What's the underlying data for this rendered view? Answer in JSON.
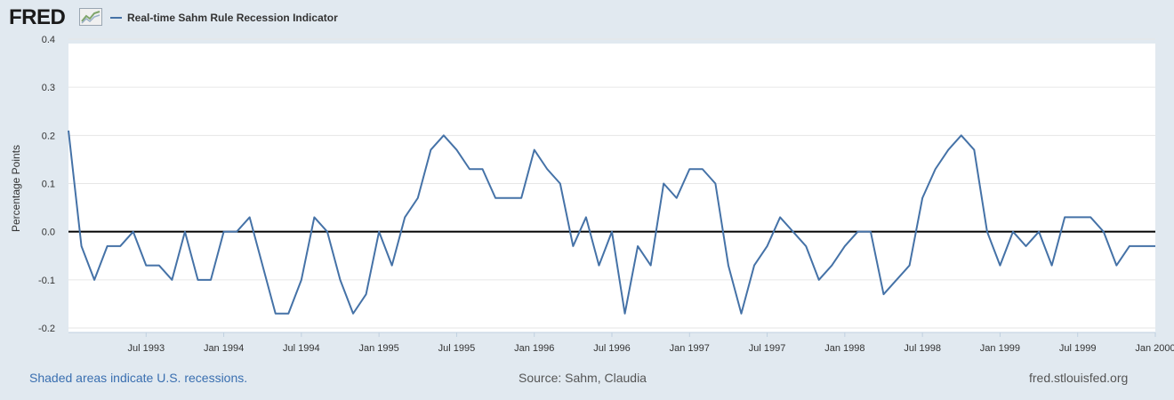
{
  "header": {
    "logo_text": "FRED",
    "logo_icon": "line-chart-icon",
    "legend_label": "Real-time Sahm Rule Recession Indicator",
    "series_color": "#4572a7"
  },
  "footer": {
    "recessions_note": "Shaded areas indicate U.S. recessions.",
    "source": "Source: Sahm, Claudia",
    "site": "fred.stlouisfed.org"
  },
  "chart_data": {
    "type": "line",
    "title": "",
    "xlabel": "",
    "ylabel": "Percentage Points",
    "ylim": [
      -0.2,
      0.4
    ],
    "yticks": [
      {
        "value": 0.4,
        "label": "0.4"
      },
      {
        "value": 0.3,
        "label": "0.3"
      },
      {
        "value": 0.2,
        "label": "0.2"
      },
      {
        "value": 0.1,
        "label": "0.1"
      },
      {
        "value": 0.0,
        "label": "0.0"
      },
      {
        "value": -0.1,
        "label": "-0.1"
      },
      {
        "value": -0.2,
        "label": "-0.2"
      }
    ],
    "xlim": [
      "1993-01",
      "2000-01"
    ],
    "xticks": [
      {
        "date": "1993-07",
        "label": "Jul 1993"
      },
      {
        "date": "1994-01",
        "label": "Jan 1994"
      },
      {
        "date": "1994-07",
        "label": "Jul 1994"
      },
      {
        "date": "1995-01",
        "label": "Jan 1995"
      },
      {
        "date": "1995-07",
        "label": "Jul 1995"
      },
      {
        "date": "1996-01",
        "label": "Jan 1996"
      },
      {
        "date": "1996-07",
        "label": "Jul 1996"
      },
      {
        "date": "1997-01",
        "label": "Jan 1997"
      },
      {
        "date": "1997-07",
        "label": "Jul 1997"
      },
      {
        "date": "1998-01",
        "label": "Jan 1998"
      },
      {
        "date": "1998-07",
        "label": "Jul 1998"
      },
      {
        "date": "1999-01",
        "label": "Jan 1999"
      },
      {
        "date": "1999-07",
        "label": "Jul 1999"
      },
      {
        "date": "2000-01",
        "label": "Jan 2000"
      }
    ],
    "zero_line": true,
    "grid": "horizontal",
    "series": [
      {
        "color": "#4572a7",
        "x": [
          "1993-01",
          "1993-02",
          "1993-03",
          "1993-04",
          "1993-05",
          "1993-06",
          "1993-07",
          "1993-08",
          "1993-09",
          "1993-10",
          "1993-11",
          "1993-12",
          "1994-01",
          "1994-02",
          "1994-03",
          "1994-04",
          "1994-05",
          "1994-06",
          "1994-07",
          "1994-08",
          "1994-09",
          "1994-10",
          "1994-11",
          "1994-12",
          "1995-01",
          "1995-02",
          "1995-03",
          "1995-04",
          "1995-05",
          "1995-06",
          "1995-07",
          "1995-08",
          "1995-09",
          "1995-10",
          "1995-11",
          "1995-12",
          "1996-01",
          "1996-02",
          "1996-03",
          "1996-04",
          "1996-05",
          "1996-06",
          "1996-07",
          "1996-08",
          "1996-09",
          "1996-10",
          "1996-11",
          "1996-12",
          "1997-01",
          "1997-02",
          "1997-03",
          "1997-04",
          "1997-05",
          "1997-06",
          "1997-07",
          "1997-08",
          "1997-09",
          "1997-10",
          "1997-11",
          "1997-12",
          "1998-01",
          "1998-02",
          "1998-03",
          "1998-04",
          "1998-05",
          "1998-06",
          "1998-07",
          "1998-08",
          "1998-09",
          "1998-10",
          "1998-11",
          "1998-12",
          "1999-01",
          "1999-02",
          "1999-03",
          "1999-04",
          "1999-05",
          "1999-06",
          "1999-07",
          "1999-08",
          "1999-09",
          "1999-10",
          "1999-11",
          "1999-12",
          "2000-01"
        ],
        "values": [
          0.21,
          -0.03,
          -0.1,
          -0.03,
          -0.03,
          0.0,
          -0.07,
          -0.07,
          -0.1,
          0.0,
          -0.1,
          -0.1,
          0.0,
          0.0,
          0.03,
          -0.07,
          -0.17,
          -0.17,
          -0.1,
          0.03,
          0.0,
          -0.1,
          -0.17,
          -0.13,
          0.0,
          -0.07,
          0.03,
          0.07,
          0.17,
          0.2,
          0.17,
          0.13,
          0.13,
          0.07,
          0.07,
          0.07,
          0.17,
          0.13,
          0.1,
          -0.03,
          0.03,
          -0.07,
          0.0,
          -0.17,
          -0.03,
          -0.07,
          0.1,
          0.07,
          0.13,
          0.13,
          0.1,
          -0.07,
          -0.17,
          -0.07,
          -0.03,
          0.03,
          0.0,
          -0.03,
          -0.1,
          -0.07,
          -0.03,
          0.0,
          0.0,
          -0.13,
          -0.1,
          -0.07,
          0.07,
          0.13,
          0.17,
          0.2,
          0.17,
          0.0,
          -0.07,
          0.0,
          -0.03,
          0.0,
          -0.07,
          0.03,
          0.03,
          0.03,
          0.0,
          -0.07,
          -0.03,
          -0.03,
          -0.03
        ]
      }
    ]
  }
}
